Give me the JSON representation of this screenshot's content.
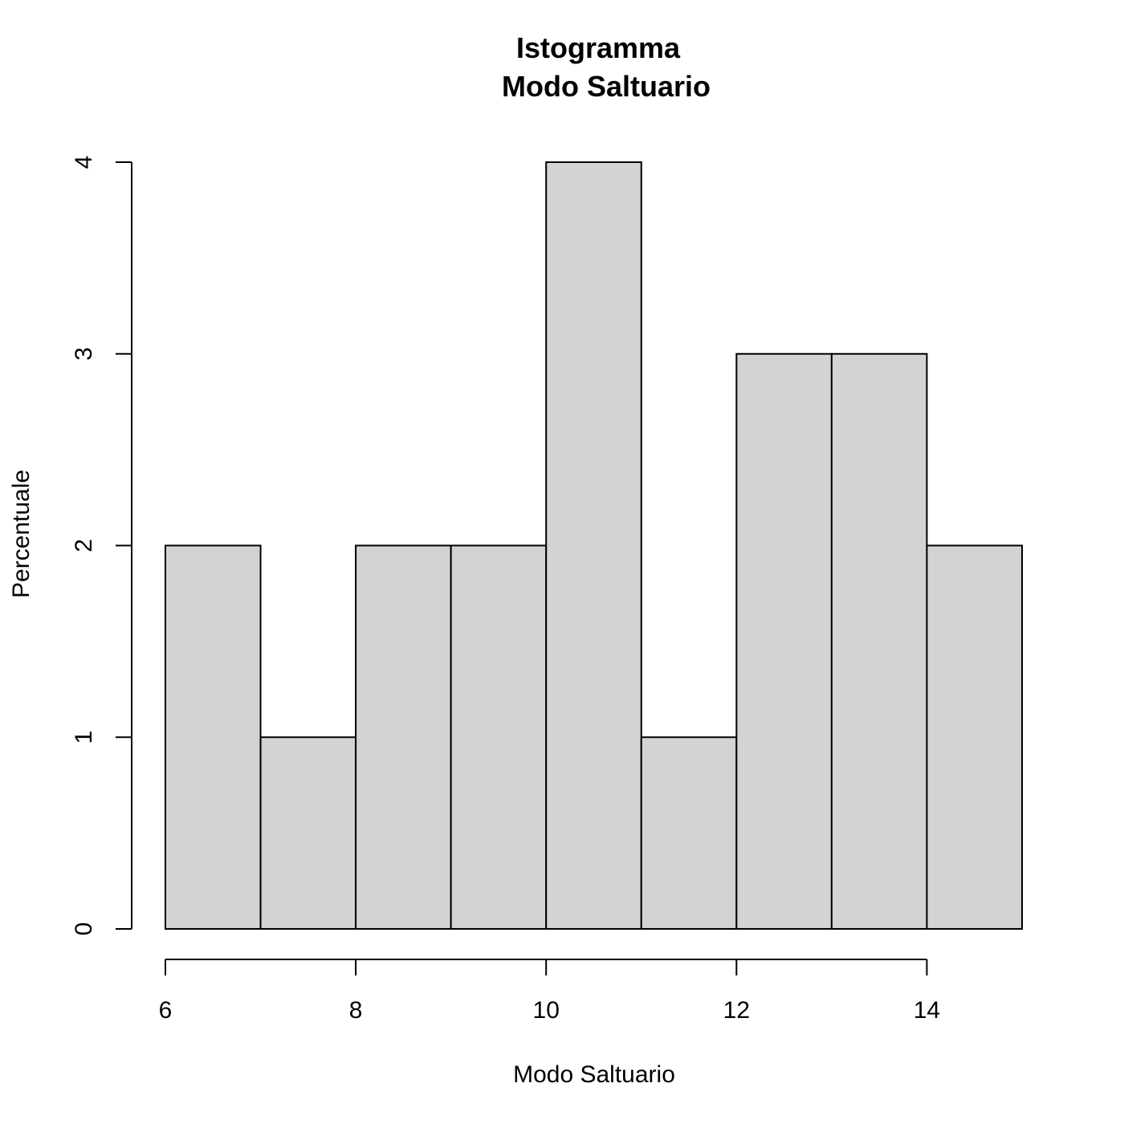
{
  "chart_data": {
    "type": "bar",
    "title": "Istogramma",
    "subtitle": "Modo Saltuario",
    "xlabel": "Modo Saltuario",
    "ylabel": "Percentuale",
    "bins": [
      {
        "start": 6,
        "end": 7,
        "value": 2
      },
      {
        "start": 7,
        "end": 8,
        "value": 1
      },
      {
        "start": 8,
        "end": 9,
        "value": 2
      },
      {
        "start": 9,
        "end": 10,
        "value": 2
      },
      {
        "start": 10,
        "end": 11,
        "value": 4
      },
      {
        "start": 11,
        "end": 12,
        "value": 1
      },
      {
        "start": 12,
        "end": 13,
        "value": 3
      },
      {
        "start": 13,
        "end": 14,
        "value": 3
      },
      {
        "start": 14,
        "end": 15,
        "value": 2
      }
    ],
    "xlim": [
      6,
      15
    ],
    "ylim": [
      0,
      4
    ],
    "x_ticks": [
      "6",
      "8",
      "10",
      "12",
      "14"
    ],
    "y_ticks": [
      "0",
      "1",
      "2",
      "3",
      "4"
    ],
    "grid": false,
    "bar_color": "#d3d3d3",
    "edge_color": "#000000"
  }
}
